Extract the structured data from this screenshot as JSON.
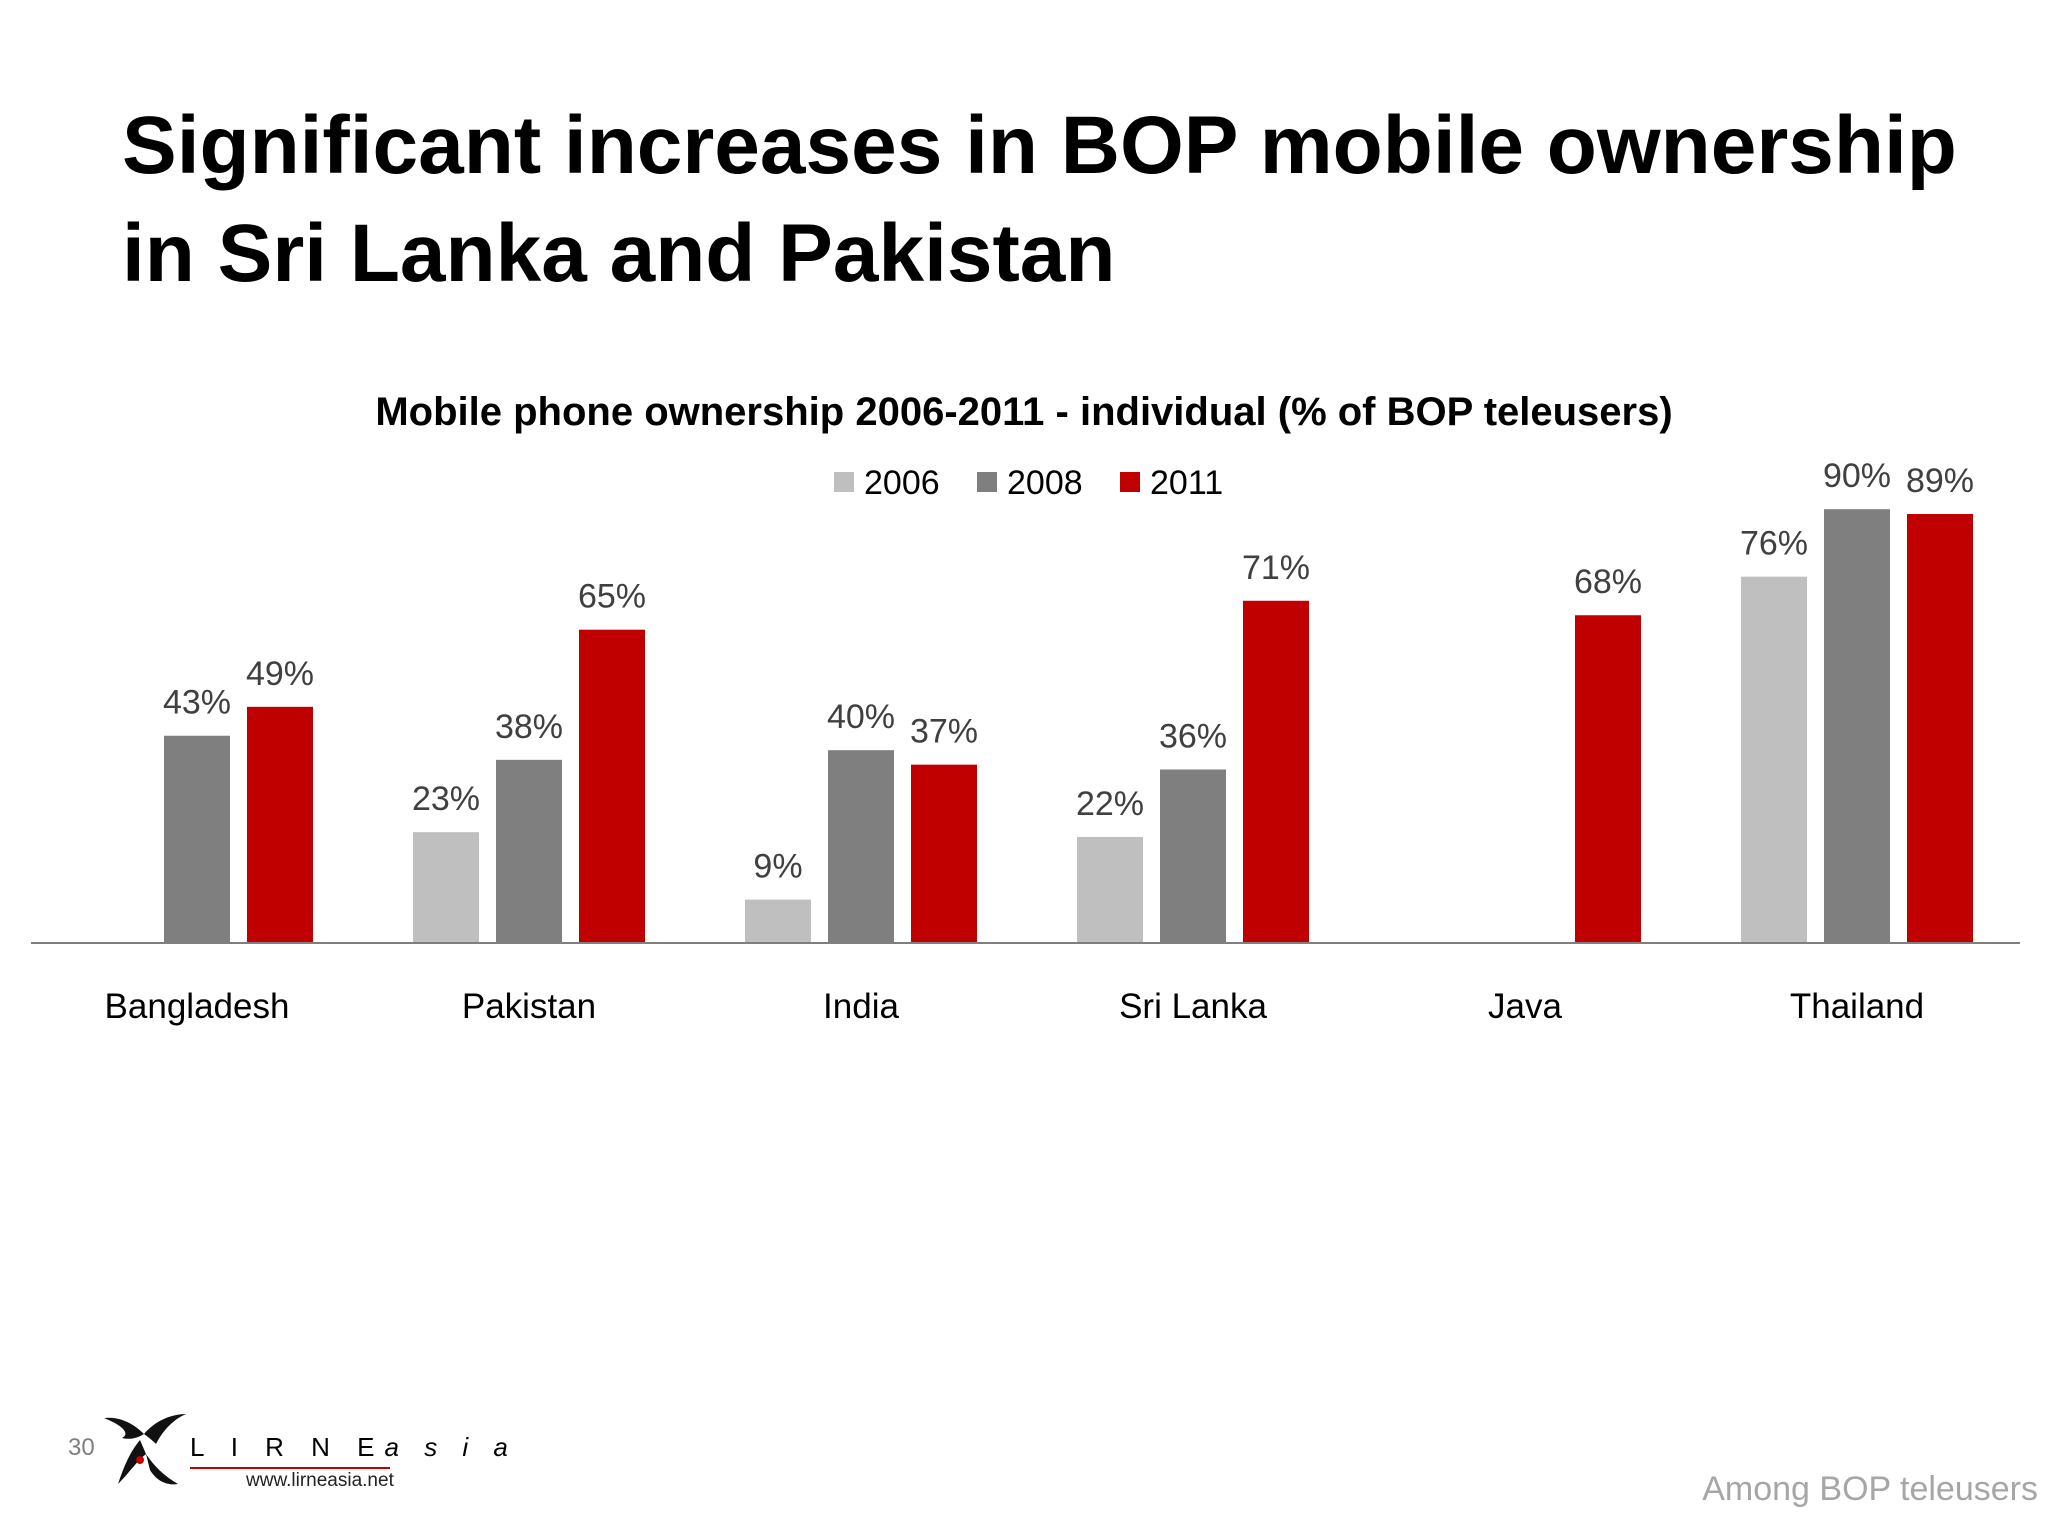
{
  "slide": {
    "title_lines": [
      "Significant increases in BOP mobile ownership",
      "in Sri Lanka and Pakistan"
    ],
    "page_number": "30",
    "footnote": "Among BOP teleusers",
    "logo": {
      "name_upper": "L I R N E",
      "name_lower": "a s i a",
      "url": "www.lirneasia.net",
      "icon": "lirneasia-bird-logo-icon"
    }
  },
  "chart_data": {
    "type": "bar",
    "title": "Mobile phone ownership 2006-2011 - individual (% of BOP teleusers)",
    "xlabel": "",
    "ylabel": "",
    "categories": [
      "Bangladesh",
      "Pakistan",
      "India",
      "Sri Lanka",
      "Java",
      "Thailand"
    ],
    "series": [
      {
        "name": "2006",
        "color": "#bfbfbf",
        "values": [
          null,
          23,
          9,
          22,
          null,
          76
        ]
      },
      {
        "name": "2008",
        "color": "#7f7f7f",
        "values": [
          43,
          38,
          40,
          36,
          null,
          90
        ]
      },
      {
        "name": "2011",
        "color": "#c00000",
        "values": [
          49,
          65,
          37,
          71,
          68,
          89
        ]
      }
    ],
    "value_suffix": "%",
    "ylim": [
      0,
      100
    ],
    "grid": false,
    "legend_position": "top-center"
  }
}
